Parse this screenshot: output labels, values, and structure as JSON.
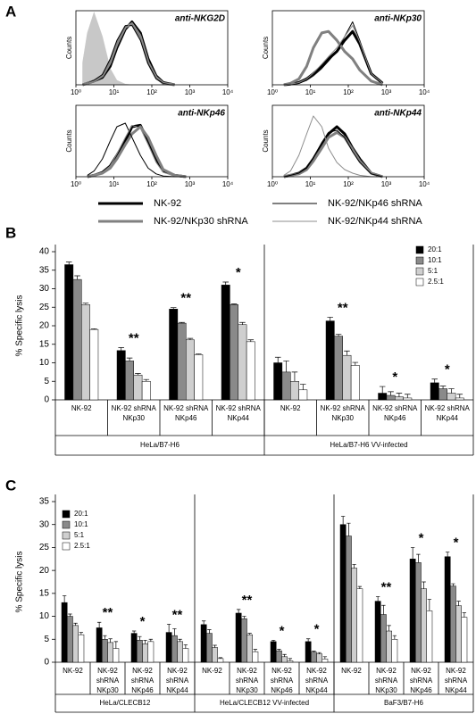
{
  "chart_data": [
    {
      "type": "histogram-curves",
      "panel_label": "A",
      "title": "anti-NKG2D",
      "y_label": "Counts",
      "xlim": [
        1,
        10000
      ],
      "ylim": [
        0,
        100
      ],
      "log_x": true,
      "xticks": [
        {
          "value": 1,
          "label": "10⁰"
        },
        {
          "value": 10,
          "label": "10¹"
        },
        {
          "value": 100,
          "label": "10²"
        },
        {
          "value": 1000,
          "label": "10³"
        },
        {
          "value": 10000,
          "label": "10⁴"
        }
      ],
      "x": [
        1.5,
        2,
        3,
        5,
        8,
        12,
        20,
        30,
        50,
        80,
        130,
        200,
        400
      ],
      "series": [
        {
          "color": "#c8c8c8",
          "fill": true,
          "linewidth": 0.5,
          "values": [
            30,
            70,
            98,
            65,
            22,
            6,
            1,
            0,
            0,
            0,
            0,
            0,
            0
          ]
        },
        {
          "name": "NK-92",
          "color": "#000000",
          "linewidth": 3,
          "values": [
            0,
            2,
            5,
            10,
            25,
            50,
            75,
            85,
            70,
            35,
            12,
            3,
            0
          ]
        },
        {
          "name": "NK-92/NKp30 shRNA",
          "color": "#808080",
          "linewidth": 3,
          "values": [
            0,
            2,
            5,
            12,
            30,
            55,
            78,
            82,
            65,
            30,
            10,
            2,
            0
          ]
        },
        {
          "name": "NK-92/NKp46 shRNA",
          "color": "#000000",
          "linewidth": 1,
          "values": [
            0,
            2,
            6,
            14,
            35,
            60,
            80,
            80,
            60,
            28,
            8,
            2,
            0
          ]
        },
        {
          "name": "NK-92/NKp44 shRNA",
          "color": "#8c8c8c",
          "linewidth": 1,
          "values": [
            0,
            2,
            5,
            11,
            28,
            52,
            76,
            84,
            68,
            32,
            11,
            3,
            0
          ]
        }
      ]
    },
    {
      "type": "histogram-curves",
      "title": "anti-NKp30",
      "y_label": "Counts",
      "xlim": [
        1,
        10000
      ],
      "ylim": [
        0,
        100
      ],
      "log_x": true,
      "xticks": [
        {
          "value": 1,
          "label": "10⁰"
        },
        {
          "value": 10,
          "label": "10¹"
        },
        {
          "value": 100,
          "label": "10²"
        },
        {
          "value": 1000,
          "label": "10³"
        },
        {
          "value": 10000,
          "label": "10⁴"
        }
      ],
      "x": [
        2,
        3,
        5,
        8,
        12,
        20,
        30,
        50,
        80,
        130,
        200,
        400,
        800
      ],
      "series": [
        {
          "color": "#000000",
          "linewidth": 3,
          "values": [
            0,
            1,
            3,
            8,
            15,
            25,
            35,
            45,
            60,
            72,
            55,
            15,
            2
          ]
        },
        {
          "color": "#808080",
          "linewidth": 3,
          "values": [
            0,
            2,
            8,
            25,
            50,
            70,
            72,
            60,
            45,
            35,
            20,
            5,
            0
          ]
        },
        {
          "color": "#000000",
          "linewidth": 1,
          "values": [
            0,
            1,
            2,
            6,
            12,
            22,
            32,
            45,
            65,
            85,
            60,
            15,
            2
          ]
        },
        {
          "color": "#8c8c8c",
          "linewidth": 1,
          "values": [
            0,
            1,
            3,
            8,
            16,
            28,
            38,
            50,
            65,
            80,
            58,
            15,
            2
          ]
        }
      ]
    },
    {
      "type": "histogram-curves",
      "title": "anti-NKp46",
      "y_label": "Counts",
      "xlim": [
        1,
        10000
      ],
      "ylim": [
        0,
        100
      ],
      "log_x": true,
      "xticks": [
        {
          "value": 1,
          "label": "10⁰"
        },
        {
          "value": 10,
          "label": "10¹"
        },
        {
          "value": 100,
          "label": "10²"
        },
        {
          "value": 1000,
          "label": "10³"
        },
        {
          "value": 10000,
          "label": "10⁴"
        }
      ],
      "x": [
        2,
        3,
        5,
        8,
        12,
        20,
        30,
        50,
        80,
        130,
        200,
        400,
        800
      ],
      "series": [
        {
          "color": "#000000",
          "linewidth": 3,
          "values": [
            0,
            2,
            6,
            15,
            30,
            50,
            70,
            72,
            50,
            25,
            8,
            2,
            0
          ]
        },
        {
          "color": "#808080",
          "linewidth": 3,
          "values": [
            0,
            2,
            5,
            12,
            25,
            45,
            60,
            70,
            55,
            30,
            10,
            2,
            0
          ]
        },
        {
          "color": "#000000",
          "linewidth": 1,
          "values": [
            2,
            8,
            25,
            50,
            70,
            75,
            55,
            30,
            12,
            4,
            1,
            0,
            0
          ]
        },
        {
          "color": "#8c8c8c",
          "linewidth": 1,
          "values": [
            0,
            2,
            6,
            15,
            32,
            55,
            72,
            68,
            45,
            20,
            6,
            1,
            0
          ]
        }
      ]
    },
    {
      "type": "histogram-curves",
      "title": "anti-NKp44",
      "y_label": "Counts",
      "xlim": [
        1,
        10000
      ],
      "ylim": [
        0,
        100
      ],
      "log_x": true,
      "xticks": [
        {
          "value": 1,
          "label": "10⁰"
        },
        {
          "value": 10,
          "label": "10¹"
        },
        {
          "value": 100,
          "label": "10²"
        },
        {
          "value": 1000,
          "label": "10³"
        },
        {
          "value": 10000,
          "label": "10⁴"
        }
      ],
      "x": [
        2,
        3,
        5,
        8,
        12,
        20,
        30,
        50,
        80,
        130,
        200,
        400,
        800
      ],
      "series": [
        {
          "color": "#000000",
          "linewidth": 3,
          "values": [
            0,
            2,
            5,
            12,
            25,
            45,
            60,
            70,
            60,
            40,
            25,
            5,
            0
          ]
        },
        {
          "color": "#808080",
          "linewidth": 3,
          "values": [
            0,
            2,
            4,
            10,
            22,
            40,
            55,
            62,
            55,
            38,
            22,
            5,
            0
          ]
        },
        {
          "color": "#000000",
          "linewidth": 1,
          "values": [
            0,
            2,
            5,
            12,
            26,
            48,
            62,
            65,
            55,
            35,
            20,
            4,
            0
          ]
        },
        {
          "color": "#8c8c8c",
          "linewidth": 1,
          "values": [
            2,
            8,
            30,
            60,
            85,
            70,
            40,
            20,
            10,
            5,
            2,
            0,
            0
          ]
        }
      ]
    },
    {
      "type": "bar",
      "panel_label": "B",
      "y_label": "% Specific lysis",
      "ylim": [
        0,
        40
      ],
      "yticks": [
        0,
        5,
        10,
        15,
        20,
        25,
        30,
        35,
        40
      ],
      "categories": [
        [
          "NK-92"
        ],
        [
          "NK-92 shRNA",
          "NKp30"
        ],
        [
          "NK-92 shRNA",
          "NKp46"
        ],
        [
          "NK-92 shRNA",
          "NKp44"
        ],
        [
          "NK-92"
        ],
        [
          "NK-92 shRNA",
          "NKp30"
        ],
        [
          "NK-92 shRNA",
          "NKp46"
        ],
        [
          "NK-92 shRNA",
          "NKp44"
        ]
      ],
      "groups": [
        {
          "label": "HeLa/B7-H6",
          "size": 4
        },
        {
          "label": "HeLa/B7-H6  VV-infected",
          "size": 4
        }
      ],
      "significance": [
        null,
        "**",
        "**",
        "*",
        null,
        "**",
        "*",
        "*"
      ],
      "legend": "upper right",
      "series": [
        {
          "name": "20:1",
          "color": "#000000",
          "values": [
            36.5,
            13.3,
            24.5,
            31,
            10,
            21.3,
            1.8,
            4.6
          ],
          "errors": [
            0.7,
            0.8,
            0.4,
            0.8,
            1.5,
            1,
            1.8,
            1
          ]
        },
        {
          "name": "10:1",
          "color": "#8a8a8a",
          "values": [
            32.5,
            10.5,
            20.7,
            25.7,
            7.5,
            17.2,
            1.2,
            3
          ],
          "errors": [
            1,
            0.8,
            0.2,
            0.2,
            3,
            0.5,
            1,
            0.7
          ]
        },
        {
          "name": "5:1",
          "color": "#cfcfcf",
          "values": [
            25.7,
            6.7,
            16.2,
            20.3,
            5,
            12,
            0.8,
            1.8
          ],
          "errors": [
            0.4,
            0.4,
            0.4,
            0.6,
            2.5,
            1.2,
            1,
            1.2
          ]
        },
        {
          "name": "2.5:1",
          "color": "#ffffff",
          "values": [
            19,
            5,
            12.2,
            15.7,
            2.7,
            9.3,
            0.5,
            0.5
          ],
          "errors": [
            0.2,
            0.5,
            0.2,
            0.5,
            1.5,
            0.8,
            1,
            1
          ]
        }
      ]
    },
    {
      "type": "bar",
      "panel_label": "C",
      "y_label": "% Specific lysis",
      "ylim": [
        0,
        35
      ],
      "yticks": [
        0,
        5,
        10,
        15,
        20,
        25,
        30,
        35
      ],
      "categories": [
        [
          "NK-92"
        ],
        [
          "NK-92",
          "shRNA",
          "NKp30"
        ],
        [
          "NK-92",
          "shRNA",
          "NKp46"
        ],
        [
          "NK-92",
          "shRNA",
          "NKp44"
        ],
        [
          "NK-92"
        ],
        [
          "NK-92",
          "shRNA",
          "NKp30"
        ],
        [
          "NK-92",
          "shRNA",
          "NKp46"
        ],
        [
          "NK-92",
          "shRNA",
          "NKp44"
        ],
        [
          "NK-92"
        ],
        [
          "NK-92",
          "shRNA",
          "NKp30"
        ],
        [
          "NK-92",
          "shRNA",
          "NKp46"
        ],
        [
          "NK-92",
          "shRNA",
          "NKp44"
        ]
      ],
      "groups": [
        {
          "label": "HeLa/CLECB12",
          "size": 4
        },
        {
          "label": "HeLa/CLECB12  VV-infected",
          "size": 4
        },
        {
          "label": "BaF3/B7-H6",
          "size": 4
        }
      ],
      "significance": [
        null,
        "**",
        "*",
        "**",
        null,
        "**",
        "*",
        "*",
        null,
        "**",
        "*",
        "*"
      ],
      "legend": "upper left",
      "series": [
        {
          "name": "20:1",
          "color": "#000000",
          "values": [
            13,
            7.5,
            6.3,
            6.5,
            8.2,
            10.7,
            4.5,
            4.5,
            30,
            13.3,
            22.5,
            23
          ],
          "errors": [
            1.5,
            1.2,
            0.5,
            1.8,
            0.8,
            0.8,
            0.3,
            0.6,
            1.8,
            1,
            2.5,
            1
          ]
        },
        {
          "name": "10:1",
          "color": "#8a8a8a",
          "values": [
            10,
            5,
            4.8,
            5.8,
            6.3,
            9.5,
            2.5,
            2.2,
            27.5,
            10.4,
            21.7,
            16.6
          ],
          "errors": [
            0.5,
            0.8,
            0.8,
            1.5,
            0.8,
            0.5,
            0.3,
            0.2,
            2.8,
            2,
            1.8,
            0.5
          ]
        },
        {
          "name": "5:1",
          "color": "#cfcfcf",
          "values": [
            8,
            4.3,
            4,
            4.5,
            3.2,
            6,
            1.2,
            1.8,
            20.5,
            6.8,
            16,
            12.3
          ],
          "errors": [
            0.5,
            0.8,
            0.8,
            0.5,
            0.5,
            0.3,
            0.5,
            0.3,
            0.8,
            1.2,
            1.5,
            1
          ]
        },
        {
          "name": "2.5:1",
          "color": "#ffffff",
          "values": [
            6,
            3,
            4.5,
            3,
            0.8,
            2.3,
            0.3,
            0.7,
            16,
            5,
            11.2,
            9.8
          ],
          "errors": [
            0.5,
            1.5,
            0.5,
            0.8,
            0.2,
            0.5,
            0.5,
            0.5,
            0.5,
            0.8,
            2.5,
            1
          ]
        }
      ]
    }
  ]
}
